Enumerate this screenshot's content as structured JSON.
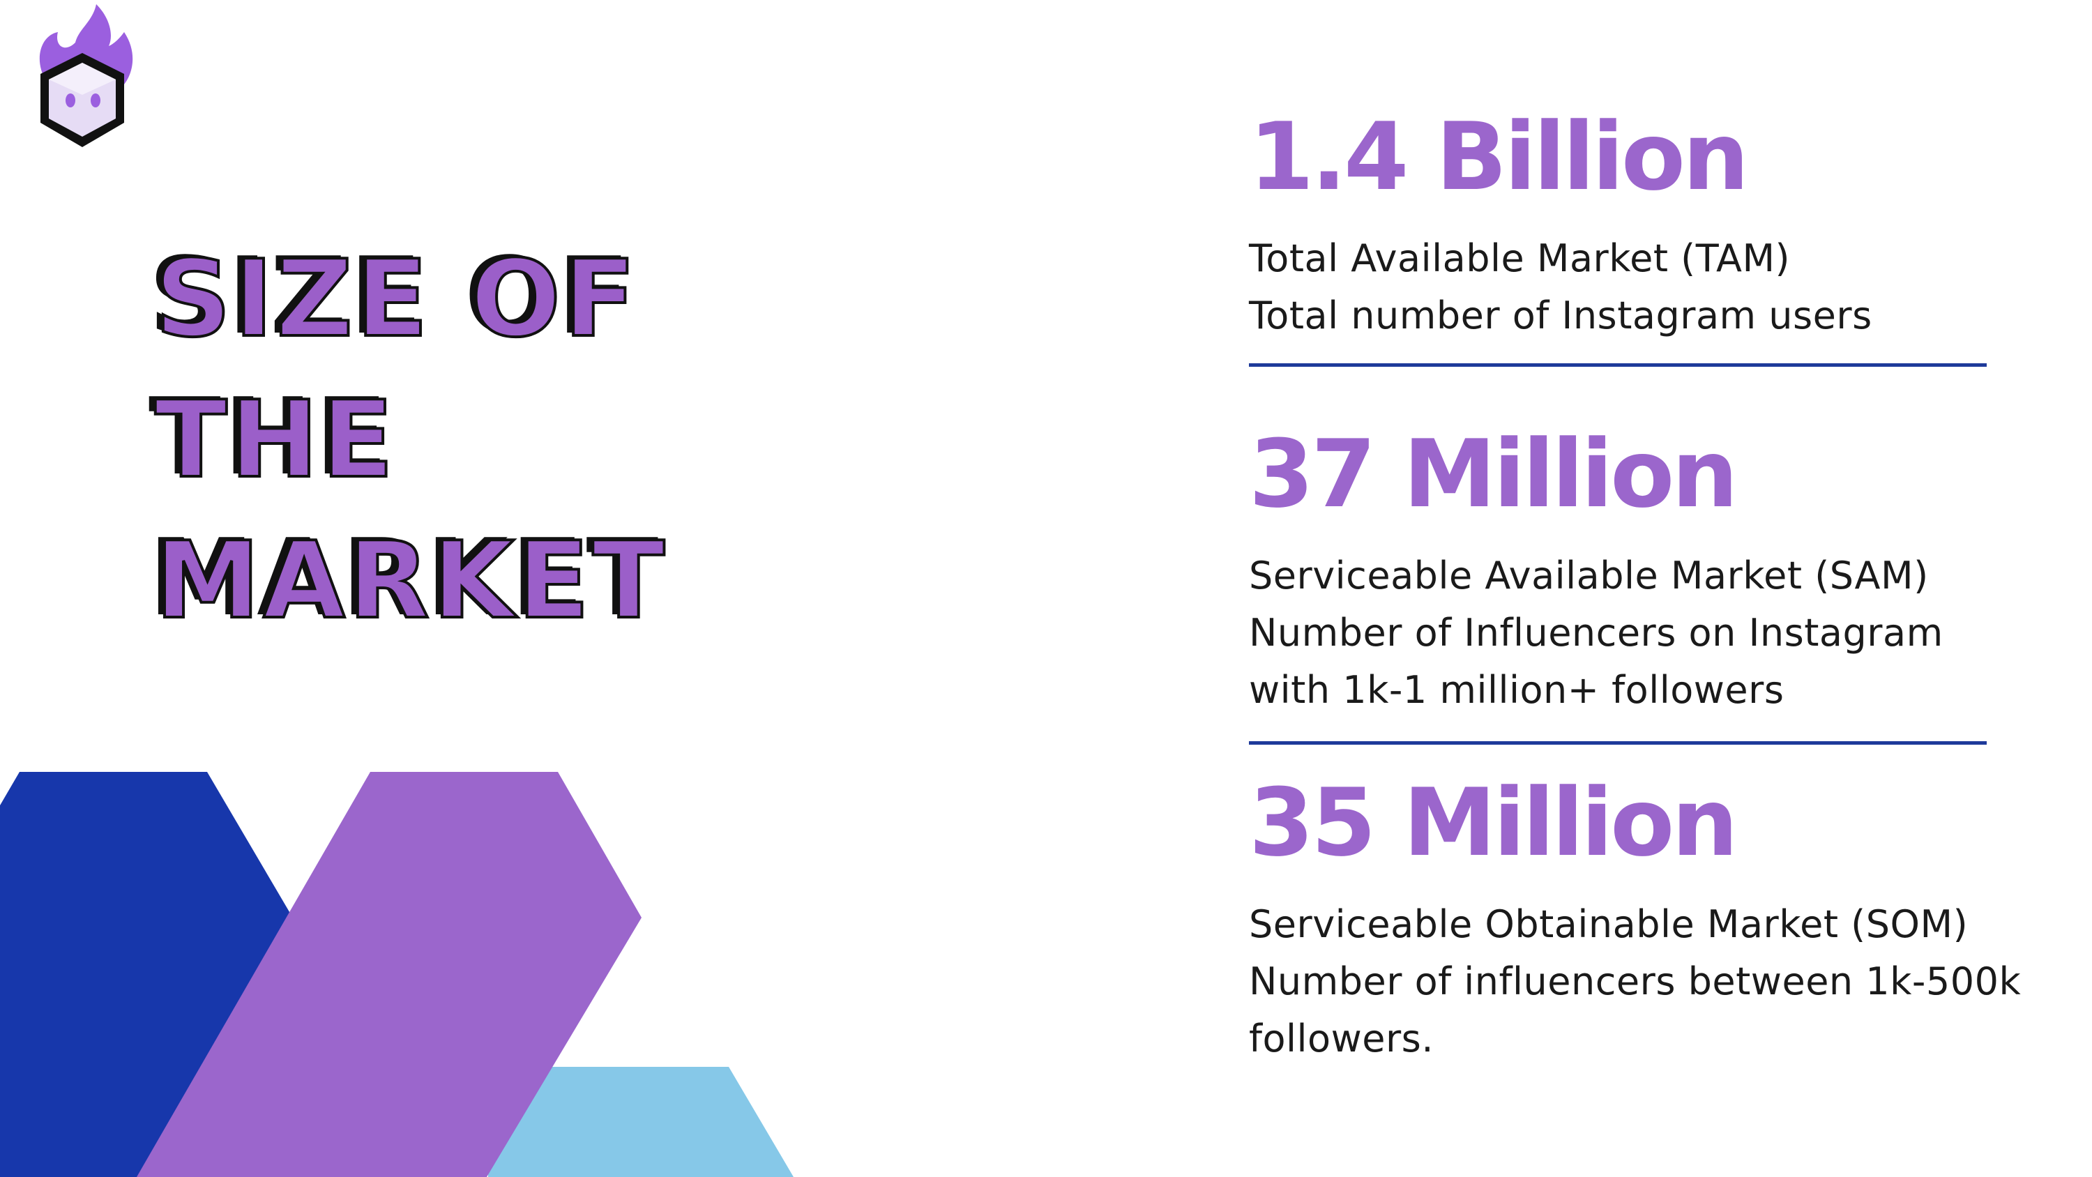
{
  "title": {
    "lines": [
      "SIZE OF",
      "THE",
      "MARKET"
    ]
  },
  "logo": {
    "icon": "flame-cube-mascot-icon"
  },
  "colors": {
    "purple": "#9b66cc",
    "navy": "#1737ab",
    "light_blue": "#86c8e8",
    "divider": "#1e3a9a",
    "text": "#1a1a1a"
  },
  "stats": [
    {
      "value": "1.4 Billion",
      "lines": [
        "Total Available Market (TAM)",
        "Total number of Instagram users"
      ]
    },
    {
      "value": "37 Million",
      "lines": [
        "Serviceable Available Market (SAM)",
        "Number of Influencers on Instagram",
        "with 1k-1 million+ followers"
      ]
    },
    {
      "value": "35 Million",
      "lines": [
        "Serviceable Obtainable Market (SOM)",
        "Number of influencers between 1k-500k",
        "followers."
      ]
    }
  ]
}
